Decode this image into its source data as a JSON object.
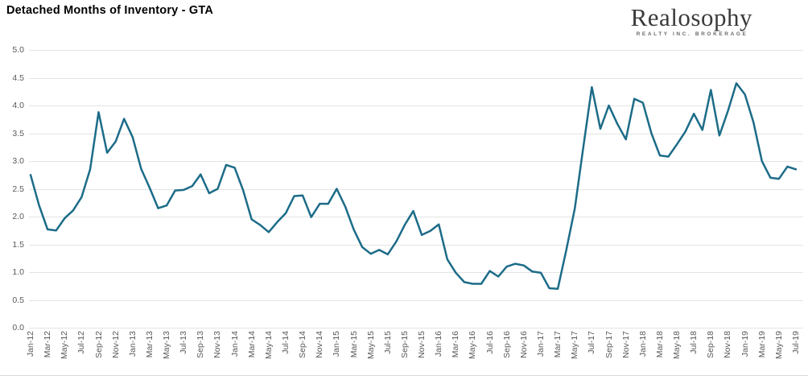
{
  "title": "Detached Months of Inventory - GTA",
  "logo": {
    "name": "Realosophy",
    "tagline": "REALTY INC. BROKERAGE"
  },
  "colors": {
    "line": "#1c6c88",
    "grid": "#e4e4e4",
    "axis_text": "#595959",
    "title_text": "#000000",
    "background": "#ffffff"
  },
  "chart_data": {
    "type": "line",
    "title": "Detached Months of Inventory - GTA",
    "series_name": "Detached Months of Inventory - GTA",
    "xlabel": "",
    "ylabel": "",
    "ylim": [
      0.0,
      5.0
    ],
    "ytick_step": 0.5,
    "ytick_labels": [
      "0.0",
      "0.5",
      "1.0",
      "1.5",
      "2.0",
      "2.5",
      "3.0",
      "3.5",
      "4.0",
      "4.5",
      "5.0"
    ],
    "xtick_every": 2,
    "grid": "horizontal",
    "legend_position": "none",
    "x": [
      "Jan-12",
      "Feb-12",
      "Mar-12",
      "Apr-12",
      "May-12",
      "Jun-12",
      "Jul-12",
      "Aug-12",
      "Sep-12",
      "Oct-12",
      "Nov-12",
      "Dec-12",
      "Jan-13",
      "Feb-13",
      "Mar-13",
      "Apr-13",
      "May-13",
      "Jun-13",
      "Jul-13",
      "Aug-13",
      "Sep-13",
      "Oct-13",
      "Nov-13",
      "Dec-13",
      "Jan-14",
      "Feb-14",
      "Mar-14",
      "Apr-14",
      "May-14",
      "Jun-14",
      "Jul-14",
      "Aug-14",
      "Sep-14",
      "Oct-14",
      "Nov-14",
      "Dec-14",
      "Jan-15",
      "Feb-15",
      "Mar-15",
      "Apr-15",
      "May-15",
      "Jun-15",
      "Jul-15",
      "Aug-15",
      "Sep-15",
      "Oct-15",
      "Nov-15",
      "Dec-15",
      "Jan-16",
      "Feb-16",
      "Mar-16",
      "Apr-16",
      "May-16",
      "Jun-16",
      "Jul-16",
      "Aug-16",
      "Sep-16",
      "Oct-16",
      "Nov-16",
      "Dec-16",
      "Jan-17",
      "Feb-17",
      "Mar-17",
      "Apr-17",
      "May-17",
      "Jun-17",
      "Jul-17",
      "Aug-17",
      "Sep-17",
      "Oct-17",
      "Nov-17",
      "Dec-17",
      "Jan-18",
      "Feb-18",
      "Mar-18",
      "Apr-18",
      "May-18",
      "Jun-18",
      "Jul-18",
      "Aug-18",
      "Sep-18",
      "Oct-18",
      "Nov-18",
      "Dec-18",
      "Jan-19",
      "Feb-19",
      "Mar-19",
      "Apr-19",
      "May-19",
      "Jun-19",
      "Jul-19"
    ],
    "values": [
      2.75,
      2.2,
      1.77,
      1.75,
      1.97,
      2.11,
      2.35,
      2.85,
      3.88,
      3.15,
      3.35,
      3.76,
      3.43,
      2.86,
      2.52,
      2.15,
      2.2,
      2.47,
      2.48,
      2.55,
      2.76,
      2.42,
      2.5,
      2.93,
      2.88,
      2.47,
      1.95,
      1.85,
      1.72,
      1.9,
      2.06,
      2.37,
      2.38,
      1.99,
      2.23,
      2.23,
      2.5,
      2.18,
      1.77,
      1.45,
      1.33,
      1.4,
      1.32,
      1.55,
      1.85,
      2.1,
      1.67,
      1.74,
      1.86,
      1.23,
      0.99,
      0.82,
      0.79,
      0.79,
      1.02,
      0.92,
      1.1,
      1.15,
      1.12,
      1.01,
      0.99,
      0.71,
      0.7,
      1.4,
      2.15,
      3.25,
      4.33,
      3.58,
      4.0,
      3.67,
      3.39,
      4.12,
      4.05,
      3.5,
      3.1,
      3.08,
      3.3,
      3.53,
      3.85,
      3.56,
      4.28,
      3.46,
      3.9,
      4.4,
      4.2,
      3.7,
      3.0,
      2.7,
      2.68,
      2.9,
      2.85
    ]
  }
}
